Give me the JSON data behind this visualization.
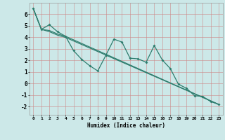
{
  "xlabel": "Humidex (Indice chaleur)",
  "xlim": [
    -0.5,
    23.5
  ],
  "ylim": [
    -2.7,
    7.0
  ],
  "yticks": [
    -2,
    -1,
    0,
    1,
    2,
    3,
    4,
    5,
    6
  ],
  "xticks": [
    0,
    1,
    2,
    3,
    4,
    5,
    6,
    7,
    8,
    9,
    10,
    11,
    12,
    13,
    14,
    15,
    16,
    17,
    18,
    19,
    20,
    21,
    22,
    23
  ],
  "background_color": "#cce8e8",
  "grid_color_major": "#cc9999",
  "line_color": "#2e7d6e",
  "series1_x": [
    0,
    1,
    2,
    3,
    4,
    5,
    6,
    7,
    8,
    9,
    10,
    11,
    12,
    13,
    14,
    15,
    16,
    17,
    18,
    19,
    20,
    21,
    22,
    23
  ],
  "series1_y": [
    6.5,
    4.7,
    5.1,
    4.5,
    4.1,
    2.85,
    2.1,
    1.55,
    1.1,
    2.45,
    3.85,
    3.6,
    2.2,
    2.15,
    1.85,
    3.3,
    2.05,
    1.3,
    -0.05,
    -0.4,
    -1.05,
    -1.1,
    -1.55,
    -1.8
  ],
  "series2_x": [
    0,
    1,
    2,
    3,
    4,
    23
  ],
  "series2_y": [
    6.5,
    4.7,
    4.6,
    4.3,
    4.1,
    -1.8
  ],
  "series3_x": [
    0,
    1,
    2,
    3,
    4,
    23
  ],
  "series3_y": [
    6.5,
    4.7,
    4.5,
    4.2,
    4.0,
    -1.8
  ]
}
